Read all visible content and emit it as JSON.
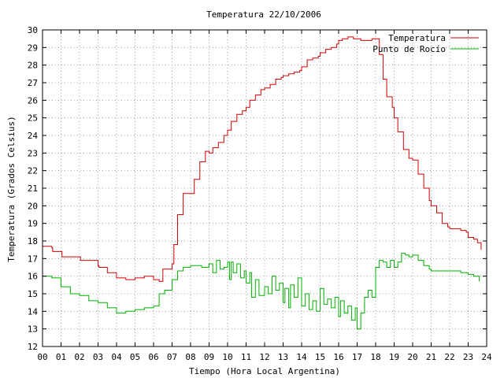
{
  "chart_data": {
    "type": "line",
    "title": "Temperatura 22/10/2006",
    "xlabel": "Tiempo (Hora Local Argentina)",
    "ylabel": "Temperatura (Grados Celsius)",
    "xlim": [
      0,
      24
    ],
    "ylim": [
      12,
      30
    ],
    "x_tick_labels": [
      "00",
      "01",
      "02",
      "03",
      "04",
      "05",
      "06",
      "07",
      "08",
      "09",
      "10",
      "11",
      "12",
      "13",
      "14",
      "15",
      "16",
      "17",
      "18",
      "19",
      "20",
      "21",
      "22",
      "23",
      "24"
    ],
    "y_tick_labels": [
      "12",
      "13",
      "14",
      "15",
      "16",
      "17",
      "18",
      "19",
      "20",
      "21",
      "22",
      "23",
      "24",
      "25",
      "26",
      "27",
      "28",
      "29",
      "30"
    ],
    "grid": true,
    "legend_position": "top-right",
    "series": [
      {
        "name": "Temperatura",
        "color": "#d00000",
        "x": [
          0,
          0.5,
          0.55,
          1.0,
          1.05,
          2.0,
          2.05,
          3.0,
          3.05,
          3.5,
          4.0,
          4.5,
          5.0,
          5.5,
          6.0,
          6.3,
          6.5,
          7.0,
          7.1,
          7.3,
          7.6,
          8.0,
          8.2,
          8.5,
          8.8,
          9.0,
          9.2,
          9.5,
          9.8,
          10.0,
          10.2,
          10.5,
          10.8,
          11.0,
          11.2,
          11.5,
          11.8,
          12.0,
          12.3,
          12.6,
          12.9,
          13.0,
          13.3,
          13.6,
          13.9,
          14.0,
          14.3,
          14.6,
          14.9,
          15.0,
          15.3,
          15.6,
          15.9,
          16.0,
          16.2,
          16.5,
          16.8,
          17.0,
          17.2,
          17.5,
          17.8,
          18.0,
          18.2,
          18.4,
          18.6,
          18.9,
          19.0,
          19.2,
          19.5,
          19.8,
          20.0,
          20.3,
          20.6,
          20.9,
          21.0,
          21.3,
          21.6,
          21.9,
          22.0,
          22.3,
          22.6,
          22.9,
          23.0,
          23.3,
          23.5,
          23.7
        ],
        "y": [
          17.7,
          17.6,
          17.4,
          17.4,
          17.1,
          17.1,
          16.9,
          16.6,
          16.5,
          16.2,
          15.9,
          15.8,
          15.9,
          16.0,
          15.8,
          15.7,
          16.4,
          16.7,
          17.8,
          19.5,
          20.7,
          20.7,
          21.5,
          22.5,
          23.1,
          23.0,
          23.3,
          23.6,
          24.0,
          24.3,
          24.8,
          25.2,
          25.4,
          25.6,
          26.0,
          26.3,
          26.6,
          26.7,
          26.9,
          27.2,
          27.3,
          27.4,
          27.5,
          27.6,
          27.7,
          27.9,
          28.3,
          28.4,
          28.5,
          28.7,
          28.9,
          29.0,
          29.2,
          29.4,
          29.5,
          29.6,
          29.5,
          29.5,
          29.4,
          29.4,
          29.5,
          29.5,
          28.6,
          27.2,
          26.2,
          25.6,
          25.0,
          24.2,
          23.2,
          22.7,
          22.6,
          21.8,
          21.0,
          20.3,
          20.0,
          19.6,
          19.0,
          18.8,
          18.7,
          18.7,
          18.6,
          18.5,
          18.2,
          18.1,
          17.9,
          17.5
        ]
      },
      {
        "name": "Punto de Rocío",
        "color": "#00b000",
        "x": [
          0,
          0.5,
          1.0,
          1.5,
          2.0,
          2.5,
          3.0,
          3.5,
          4.0,
          4.5,
          5.0,
          5.5,
          6.0,
          6.3,
          6.6,
          7.0,
          7.3,
          7.6,
          8.0,
          8.3,
          8.6,
          9.0,
          9.2,
          9.4,
          9.6,
          9.8,
          10.0,
          10.1,
          10.2,
          10.3,
          10.5,
          10.7,
          10.9,
          11.0,
          11.2,
          11.3,
          11.5,
          11.7,
          12.0,
          12.2,
          12.4,
          12.6,
          12.8,
          13.0,
          13.1,
          13.3,
          13.4,
          13.6,
          13.8,
          14.0,
          14.2,
          14.4,
          14.6,
          14.8,
          15.0,
          15.2,
          15.4,
          15.6,
          15.8,
          16.0,
          16.1,
          16.3,
          16.5,
          16.7,
          16.9,
          17.0,
          17.2,
          17.4,
          17.6,
          17.8,
          18.0,
          18.2,
          18.4,
          18.6,
          18.8,
          19.0,
          19.2,
          19.4,
          19.6,
          19.8,
          20.0,
          20.3,
          20.6,
          20.9,
          21.0,
          21.3,
          21.6,
          22.0,
          22.3,
          22.6,
          23.0,
          23.3,
          23.6
        ],
        "y": [
          16.0,
          15.9,
          15.4,
          15.0,
          14.9,
          14.6,
          14.5,
          14.2,
          13.9,
          14.0,
          14.1,
          14.2,
          14.3,
          15.0,
          15.2,
          15.8,
          16.3,
          16.5,
          16.6,
          16.6,
          16.5,
          16.7,
          16.2,
          16.9,
          16.4,
          16.5,
          16.8,
          15.8,
          16.8,
          16.2,
          16.7,
          15.9,
          16.3,
          15.6,
          16.2,
          14.8,
          15.8,
          14.9,
          15.4,
          15.0,
          16.0,
          15.2,
          15.6,
          14.5,
          15.3,
          14.2,
          15.5,
          14.8,
          15.9,
          14.3,
          15.0,
          14.1,
          14.6,
          14.0,
          15.3,
          14.4,
          14.7,
          14.2,
          14.8,
          13.7,
          14.6,
          13.9,
          14.3,
          13.5,
          14.2,
          13.0,
          13.9,
          14.8,
          15.2,
          14.8,
          16.5,
          16.9,
          16.8,
          16.5,
          16.9,
          16.5,
          16.8,
          17.3,
          17.2,
          17.1,
          17.2,
          16.9,
          16.6,
          16.4,
          16.3,
          16.3,
          16.3,
          16.3,
          16.3,
          16.2,
          16.1,
          16.0,
          15.7
        ]
      }
    ]
  }
}
